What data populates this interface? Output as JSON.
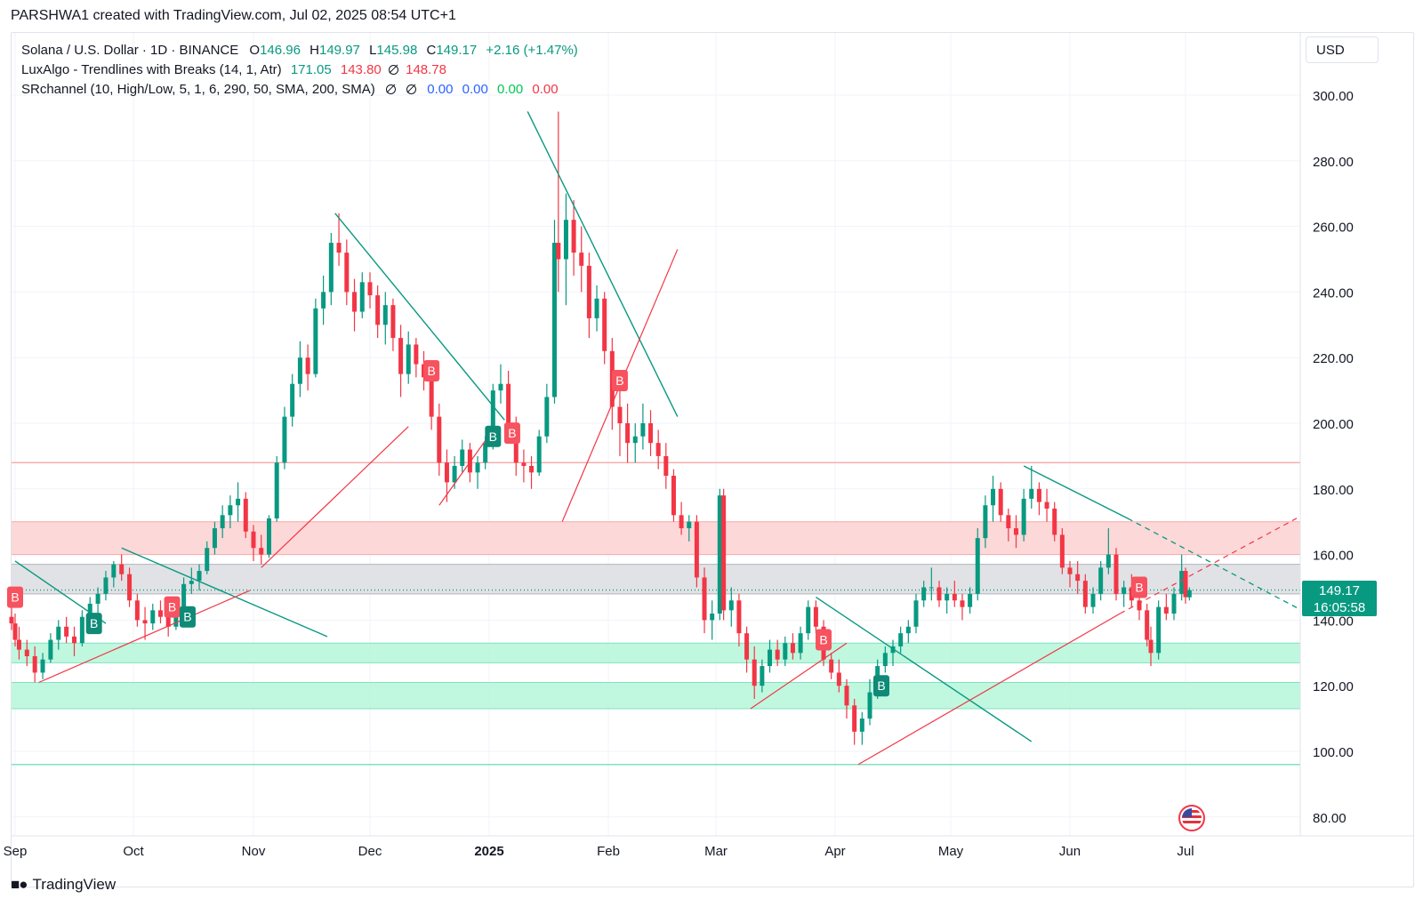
{
  "credit": "PARSHWA1 created with TradingView.com, Jul 02, 2025 08:54 UTC+1",
  "legend": {
    "symbol": "Solana / U.S. Dollar · 1D · BINANCE",
    "o_label": "O",
    "o_value": "146.96",
    "h_label": "H",
    "h_value": "149.97",
    "l_label": "L",
    "l_value": "145.98",
    "c_label": "C",
    "c_value": "149.17",
    "change": "+2.16 (+1.47%)",
    "indicator1": "LuxAlgo - Trendlines with Breaks (14, 1, Atr)",
    "ind1_v1": "171.05",
    "ind1_v2": "143.80",
    "ind1_v3": "148.78",
    "indicator2": "SRchannel (10, High/Low, 5, 1, 6, 290, 50, SMA, 200, SMA)",
    "ind2_v1": "0.00",
    "ind2_v2": "0.00",
    "ind2_v3": "0.00",
    "ind2_v4": "0.00"
  },
  "currency_button": "USD",
  "last_price": "149.17",
  "countdown": "16:05:58",
  "footer": "TradingView",
  "colors": {
    "up": "#089981",
    "down": "#f23645",
    "resistance_zone": "#fdd4d4",
    "support_zone": "#b9f6dc",
    "neutral_zone": "#dedfe2"
  },
  "chart_data": {
    "type": "candlestick",
    "y_ticks": [
      "300.00",
      "280.00",
      "260.00",
      "240.00",
      "220.00",
      "200.00",
      "180.00",
      "160.00",
      "140.00",
      "120.00",
      "100.00",
      "80.00"
    ],
    "ylim": [
      75,
      305
    ],
    "x_ticks": [
      "Sep",
      "Oct",
      "Nov",
      "Dec",
      "2025",
      "Feb",
      "Mar",
      "Apr",
      "May",
      "Jun",
      "Jul"
    ],
    "grid": true,
    "zones": [
      {
        "color": "resistance",
        "from": 160,
        "to": 170
      },
      {
        "color": "neutral",
        "from": 148,
        "to": 157
      },
      {
        "color": "support",
        "from": 127,
        "to": 133
      },
      {
        "color": "support",
        "from": 113,
        "to": 121
      }
    ],
    "horizontal_lines": [
      {
        "value": 188,
        "color": "#f7a9a9"
      },
      {
        "value": 96,
        "color": "#7fe3bf"
      },
      {
        "value": 149.17,
        "color": "#089981",
        "dotted": true
      }
    ],
    "trendlines_down": [
      [
        [
          "Sep 1",
          158
        ],
        [
          "Sep 24",
          139
        ]
      ],
      [
        [
          "Sep 28",
          162
        ],
        [
          "Nov 20",
          135
        ]
      ],
      [
        [
          "Nov 22",
          264
        ],
        [
          "Jan 5",
          201
        ]
      ],
      [
        [
          "Jan 11",
          295
        ],
        [
          "Feb 19",
          202
        ]
      ],
      [
        [
          "Mar 27",
          147
        ],
        [
          "May 22",
          103
        ]
      ],
      [
        [
          "May 20",
          187
        ],
        [
          "Jun 16",
          171
        ]
      ]
    ],
    "trendlines_up": [
      [
        [
          "Sep 7",
          121
        ],
        [
          "Oct 31",
          149
        ]
      ],
      [
        [
          "Nov 3",
          156
        ],
        [
          "Dec 11",
          199
        ]
      ],
      [
        [
          "Dec 19",
          175
        ],
        [
          "Jan 2",
          198
        ]
      ],
      [
        [
          "Jan 20",
          170
        ],
        [
          "Feb 19",
          253
        ]
      ],
      [
        [
          "Mar 10",
          113
        ],
        [
          "Apr 4",
          133
        ]
      ],
      [
        [
          "Apr 7",
          96
        ],
        [
          "Jun 14",
          142
        ]
      ]
    ],
    "signals": [
      {
        "date": "Sep 1",
        "label": "B",
        "kind": "red",
        "price": 147
      },
      {
        "date": "Sep 21",
        "label": "B",
        "kind": "green",
        "price": 139
      },
      {
        "date": "Oct 11",
        "label": "B",
        "kind": "red",
        "price": 144
      },
      {
        "date": "Oct 15",
        "label": "B",
        "kind": "green",
        "price": 141
      },
      {
        "date": "Dec 17",
        "label": "B",
        "kind": "red",
        "price": 216
      },
      {
        "date": "Jan 2",
        "label": "B",
        "kind": "green",
        "price": 196
      },
      {
        "date": "Jan 7",
        "label": "B",
        "kind": "red",
        "price": 197
      },
      {
        "date": "Feb 4",
        "label": "B",
        "kind": "red",
        "price": 213
      },
      {
        "date": "Mar 29",
        "label": "B",
        "kind": "red",
        "price": 134
      },
      {
        "date": "Apr 13",
        "label": "B",
        "kind": "green",
        "price": 120
      },
      {
        "date": "Jun 19",
        "label": "B",
        "kind": "red",
        "price": 150
      }
    ],
    "ohlc": [
      [
        "Aug 29",
        141,
        145,
        137,
        139
      ],
      [
        "Aug 31",
        139,
        142,
        132,
        134
      ],
      [
        "Sep 2",
        134,
        138,
        128,
        131
      ],
      [
        "Sep 4",
        131,
        134,
        126,
        129
      ],
      [
        "Sep 6",
        129,
        132,
        121,
        124
      ],
      [
        "Sep 8",
        124,
        130,
        122,
        128
      ],
      [
        "Sep 10",
        128,
        136,
        127,
        134
      ],
      [
        "Sep 12",
        134,
        140,
        131,
        138
      ],
      [
        "Sep 14",
        138,
        141,
        133,
        135
      ],
      [
        "Sep 16",
        135,
        138,
        129,
        133
      ],
      [
        "Sep 18",
        133,
        143,
        132,
        141
      ],
      [
        "Sep 20",
        141,
        147,
        139,
        145
      ],
      [
        "Sep 22",
        145,
        150,
        142,
        148
      ],
      [
        "Sep 24",
        148,
        155,
        146,
        153
      ],
      [
        "Sep 26",
        153,
        158,
        150,
        157
      ],
      [
        "Sep 28",
        157,
        160,
        152,
        154
      ],
      [
        "Sep 30",
        154,
        156,
        144,
        146
      ],
      [
        "Oct 2",
        146,
        148,
        138,
        140
      ],
      [
        "Oct 4",
        140,
        144,
        134,
        139
      ],
      [
        "Oct 6",
        139,
        145,
        137,
        143
      ],
      [
        "Oct 8",
        143,
        146,
        139,
        141
      ],
      [
        "Oct 10",
        141,
        143,
        135,
        138
      ],
      [
        "Oct 12",
        138,
        145,
        137,
        144
      ],
      [
        "Oct 14",
        144,
        153,
        143,
        151
      ],
      [
        "Oct 16",
        151,
        156,
        148,
        152
      ],
      [
        "Oct 18",
        152,
        157,
        149,
        155
      ],
      [
        "Oct 20",
        155,
        164,
        154,
        162
      ],
      [
        "Oct 22",
        162,
        170,
        160,
        168
      ],
      [
        "Oct 24",
        168,
        175,
        165,
        172
      ],
      [
        "Oct 26",
        172,
        178,
        168,
        175
      ],
      [
        "Oct 28",
        175,
        182,
        170,
        177
      ],
      [
        "Oct 30",
        177,
        179,
        165,
        167
      ],
      [
        "Nov 1",
        167,
        169,
        158,
        162
      ],
      [
        "Nov 3",
        162,
        166,
        157,
        160
      ],
      [
        "Nov 5",
        160,
        172,
        159,
        171
      ],
      [
        "Nov 7",
        171,
        190,
        170,
        188
      ],
      [
        "Nov 9",
        188,
        205,
        186,
        202
      ],
      [
        "Nov 11",
        202,
        215,
        199,
        212
      ],
      [
        "Nov 13",
        212,
        225,
        208,
        220
      ],
      [
        "Nov 15",
        220,
        224,
        210,
        215
      ],
      [
        "Nov 17",
        215,
        238,
        214,
        235
      ],
      [
        "Nov 19",
        235,
        245,
        230,
        240
      ],
      [
        "Nov 21",
        240,
        258,
        236,
        255
      ],
      [
        "Nov 23",
        255,
        264,
        248,
        252
      ],
      [
        "Nov 25",
        252,
        256,
        236,
        240
      ],
      [
        "Nov 27",
        240,
        244,
        228,
        234
      ],
      [
        "Nov 29",
        234,
        246,
        232,
        243
      ],
      [
        "Dec 1",
        243,
        246,
        235,
        239
      ],
      [
        "Dec 3",
        239,
        242,
        226,
        230
      ],
      [
        "Dec 5",
        230,
        240,
        224,
        236
      ],
      [
        "Dec 7",
        236,
        238,
        222,
        226
      ],
      [
        "Dec 9",
        226,
        230,
        208,
        215
      ],
      [
        "Dec 11",
        215,
        228,
        212,
        224
      ],
      [
        "Dec 13",
        224,
        226,
        214,
        218
      ],
      [
        "Dec 15",
        218,
        222,
        210,
        214
      ],
      [
        "Dec 17",
        214,
        218,
        198,
        202
      ],
      [
        "Dec 19",
        202,
        206,
        184,
        188
      ],
      [
        "Dec 21",
        188,
        192,
        176,
        182
      ],
      [
        "Dec 23",
        182,
        190,
        180,
        187
      ],
      [
        "Dec 25",
        187,
        195,
        185,
        192
      ],
      [
        "Dec 27",
        192,
        194,
        182,
        185
      ],
      [
        "Dec 29",
        185,
        190,
        180,
        188
      ],
      [
        "Dec 31",
        188,
        196,
        186,
        194
      ],
      [
        "Jan 2",
        194,
        212,
        192,
        210
      ],
      [
        "Jan 4",
        210,
        218,
        206,
        212
      ],
      [
        "Jan 6",
        212,
        216,
        196,
        200
      ],
      [
        "Jan 8",
        200,
        202,
        184,
        188
      ],
      [
        "Jan 10",
        188,
        192,
        182,
        187
      ],
      [
        "Jan 12",
        187,
        190,
        180,
        185
      ],
      [
        "Jan 14",
        185,
        198,
        184,
        196
      ],
      [
        "Jan 16",
        196,
        212,
        194,
        208
      ],
      [
        "Jan 18",
        208,
        262,
        206,
        255
      ],
      [
        "Jan 19",
        255,
        295,
        240,
        250
      ],
      [
        "Jan 21",
        250,
        270,
        236,
        262
      ],
      [
        "Jan 23",
        262,
        268,
        245,
        252
      ],
      [
        "Jan 25",
        252,
        260,
        240,
        248
      ],
      [
        "Jan 27",
        248,
        252,
        226,
        232
      ],
      [
        "Jan 29",
        232,
        242,
        228,
        238
      ],
      [
        "Jan 31",
        238,
        240,
        218,
        222
      ],
      [
        "Feb 2",
        222,
        226,
        198,
        205
      ],
      [
        "Feb 4",
        205,
        212,
        190,
        200
      ],
      [
        "Feb 6",
        200,
        206,
        188,
        194
      ],
      [
        "Feb 8",
        194,
        200,
        188,
        196
      ],
      [
        "Feb 10",
        196,
        206,
        192,
        200
      ],
      [
        "Feb 12",
        200,
        204,
        190,
        194
      ],
      [
        "Feb 14",
        194,
        198,
        186,
        190
      ],
      [
        "Feb 16",
        190,
        194,
        180,
        184
      ],
      [
        "Feb 18",
        184,
        186,
        170,
        172
      ],
      [
        "Feb 20",
        172,
        176,
        166,
        168
      ],
      [
        "Feb 22",
        168,
        172,
        164,
        170
      ],
      [
        "Feb 24",
        170,
        172,
        150,
        153
      ],
      [
        "Feb 26",
        153,
        156,
        136,
        140
      ],
      [
        "Feb 28",
        140,
        146,
        134,
        142
      ],
      [
        "Mar 2",
        142,
        180,
        140,
        178
      ],
      [
        "Mar 3",
        178,
        180,
        140,
        143
      ],
      [
        "Mar 5",
        143,
        150,
        138,
        146
      ],
      [
        "Mar 7",
        146,
        148,
        132,
        136
      ],
      [
        "Mar 9",
        136,
        138,
        124,
        128
      ],
      [
        "Mar 11",
        128,
        132,
        116,
        120
      ],
      [
        "Mar 13",
        120,
        128,
        118,
        126
      ],
      [
        "Mar 15",
        126,
        134,
        124,
        131
      ],
      [
        "Mar 17",
        131,
        134,
        126,
        128
      ],
      [
        "Mar 19",
        128,
        135,
        126,
        133
      ],
      [
        "Mar 21",
        133,
        136,
        128,
        130
      ],
      [
        "Mar 23",
        130,
        138,
        128,
        136
      ],
      [
        "Mar 25",
        136,
        146,
        134,
        144
      ],
      [
        "Mar 27",
        144,
        146,
        136,
        138
      ],
      [
        "Mar 29",
        138,
        140,
        126,
        128
      ],
      [
        "Mar 31",
        128,
        130,
        122,
        124
      ],
      [
        "Apr 2",
        124,
        128,
        118,
        120
      ],
      [
        "Apr 4",
        120,
        122,
        110,
        114
      ],
      [
        "Apr 6",
        114,
        116,
        102,
        106
      ],
      [
        "Apr 8",
        106,
        112,
        102,
        110
      ],
      [
        "Apr 10",
        110,
        122,
        108,
        118
      ],
      [
        "Apr 12",
        118,
        128,
        116,
        126
      ],
      [
        "Apr 14",
        126,
        132,
        124,
        130
      ],
      [
        "Apr 16",
        130,
        134,
        126,
        132
      ],
      [
        "Apr 18",
        132,
        138,
        130,
        136
      ],
      [
        "Apr 20",
        136,
        140,
        133,
        138
      ],
      [
        "Apr 22",
        138,
        148,
        136,
        146
      ],
      [
        "Apr 24",
        146,
        152,
        144,
        150
      ],
      [
        "Apr 26",
        150,
        156,
        146,
        150
      ],
      [
        "Apr 28",
        150,
        152,
        144,
        146
      ],
      [
        "Apr 30",
        146,
        150,
        142,
        148
      ],
      [
        "May 2",
        148,
        152,
        144,
        146
      ],
      [
        "May 4",
        146,
        148,
        140,
        144
      ],
      [
        "May 6",
        144,
        150,
        142,
        148
      ],
      [
        "May 8",
        148,
        168,
        146,
        165
      ],
      [
        "May 10",
        165,
        178,
        162,
        175
      ],
      [
        "May 12",
        175,
        184,
        170,
        180
      ],
      [
        "May 14",
        180,
        182,
        170,
        172
      ],
      [
        "May 16",
        172,
        174,
        164,
        168
      ],
      [
        "May 18",
        168,
        172,
        162,
        166
      ],
      [
        "May 20",
        166,
        180,
        164,
        177
      ],
      [
        "May 22",
        177,
        187,
        174,
        180
      ],
      [
        "May 24",
        180,
        182,
        172,
        176
      ],
      [
        "May 26",
        176,
        180,
        170,
        174
      ],
      [
        "May 28",
        174,
        176,
        164,
        166
      ],
      [
        "May 30",
        166,
        168,
        154,
        156
      ],
      [
        "Jun 1",
        156,
        158,
        150,
        154
      ],
      [
        "Jun 3",
        154,
        158,
        148,
        152
      ],
      [
        "Jun 5",
        152,
        154,
        142,
        144
      ],
      [
        "Jun 7",
        144,
        150,
        142,
        148
      ],
      [
        "Jun 9",
        148,
        158,
        146,
        156
      ],
      [
        "Jun 11",
        156,
        168,
        154,
        160
      ],
      [
        "Jun 13",
        160,
        162,
        146,
        148
      ],
      [
        "Jun 15",
        148,
        152,
        144,
        150
      ],
      [
        "Jun 17",
        150,
        154,
        144,
        146
      ],
      [
        "Jun 19",
        146,
        150,
        140,
        143
      ],
      [
        "Jun 21",
        143,
        145,
        132,
        134
      ],
      [
        "Jun 22",
        134,
        138,
        126,
        130
      ],
      [
        "Jun 24",
        130,
        146,
        128,
        144
      ],
      [
        "Jun 26",
        144,
        148,
        140,
        142
      ],
      [
        "Jun 28",
        142,
        150,
        140,
        148
      ],
      [
        "Jun 30",
        148,
        160,
        146,
        155
      ],
      [
        "Jul 1",
        155,
        156,
        145,
        147
      ],
      [
        "Jul 2",
        146.96,
        149.97,
        145.98,
        149.17
      ]
    ]
  }
}
